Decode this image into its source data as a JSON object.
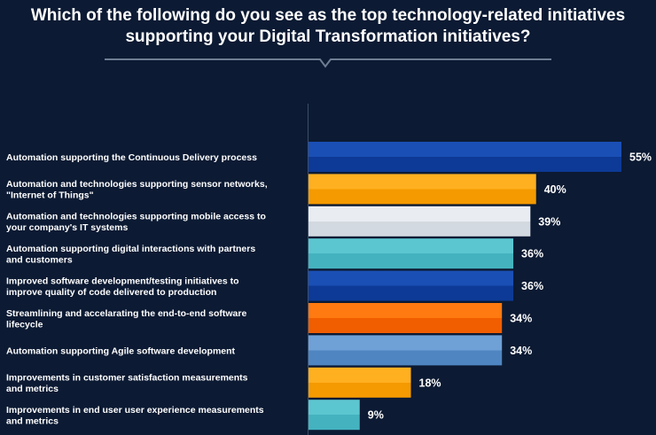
{
  "chart_data": {
    "type": "bar",
    "orientation": "horizontal",
    "title": [
      "Which of the following do you see as the top technology-related initiatives",
      "supporting your Digital Transformation initiatives?"
    ],
    "categories": [
      [
        "Automation supporting the Continuous Delivery process"
      ],
      [
        "Automation and technologies supporting sensor networks,",
        "\"Internet of Things\""
      ],
      [
        "Automation and technologies supporting mobile access to",
        "your company's IT systems"
      ],
      [
        "Automation supporting digital interactions with partners",
        "and customers"
      ],
      [
        "Improved software development/testing initiatives to",
        "improve quality of code delivered to production"
      ],
      [
        "Streamlining and accelarating the end-to-end software",
        "lifecycle"
      ],
      [
        "Automation supporting Agile software development"
      ],
      [
        "Improvements in customer satisfaction measurements",
        "and metrics"
      ],
      [
        "Improvements in end user user experience measurements",
        "and metrics"
      ]
    ],
    "values": [
      55,
      40,
      39,
      36,
      36,
      34,
      34,
      18,
      9
    ],
    "value_labels": [
      "55%",
      "40%",
      "39%",
      "36%",
      "36%",
      "34%",
      "34%",
      "18%",
      "9%"
    ],
    "colors": [
      [
        "#1a4fb5",
        "#0d3a96"
      ],
      [
        "#ffb020",
        "#f59a00"
      ],
      [
        "#e9edf2",
        "#d3d9e0"
      ],
      [
        "#5cc6d0",
        "#44b3bf"
      ],
      [
        "#1a4fb5",
        "#0d3a96"
      ],
      [
        "#ff7a10",
        "#f05e00"
      ],
      [
        "#6fa0d6",
        "#4f86c2"
      ],
      [
        "#ffb020",
        "#f59a00"
      ],
      [
        "#5cc6d0",
        "#44b3bf"
      ]
    ],
    "xlim": [
      0,
      55
    ],
    "xlabel": "",
    "ylabel": "",
    "grid": false,
    "legend": "none"
  }
}
